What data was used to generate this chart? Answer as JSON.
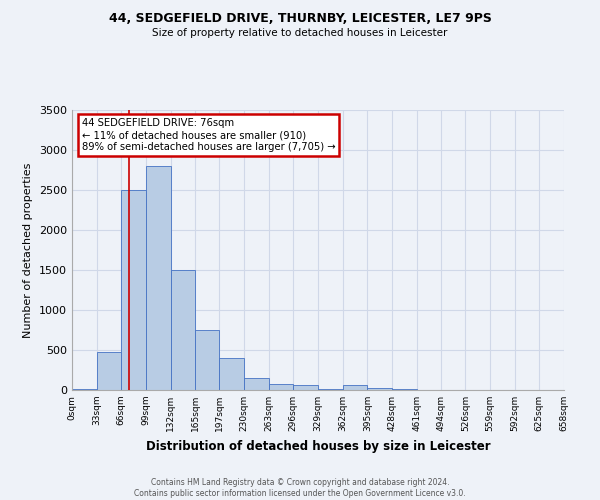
{
  "title1": "44, SEDGEFIELD DRIVE, THURNBY, LEICESTER, LE7 9PS",
  "title2": "Size of property relative to detached houses in Leicester",
  "xlabel": "Distribution of detached houses by size in Leicester",
  "ylabel": "Number of detached properties",
  "bin_edges": [
    0,
    33,
    66,
    99,
    132,
    165,
    197,
    230,
    263,
    296,
    329,
    362,
    395,
    428,
    461,
    494,
    526,
    559,
    592,
    625,
    658
  ],
  "bar_heights": [
    10,
    470,
    2500,
    2800,
    1500,
    750,
    400,
    150,
    80,
    60,
    10,
    60,
    30,
    10,
    0,
    0,
    0,
    0,
    0,
    0
  ],
  "bar_color": "#b8cce4",
  "bar_edge_color": "#4472c4",
  "property_size": 76,
  "red_line_color": "#cc0000",
  "ylim": [
    0,
    3500
  ],
  "yticks": [
    0,
    500,
    1000,
    1500,
    2000,
    2500,
    3000,
    3500
  ],
  "annotation_title": "44 SEDGEFIELD DRIVE: 76sqm",
  "annotation_line1": "← 11% of detached houses are smaller (910)",
  "annotation_line2": "89% of semi-detached houses are larger (7,705) →",
  "annotation_box_color": "#cc0000",
  "footer_line1": "Contains HM Land Registry data © Crown copyright and database right 2024.",
  "footer_line2": "Contains public sector information licensed under the Open Government Licence v3.0.",
  "grid_color": "#d0d8e8",
  "background_color": "#eef2f8"
}
